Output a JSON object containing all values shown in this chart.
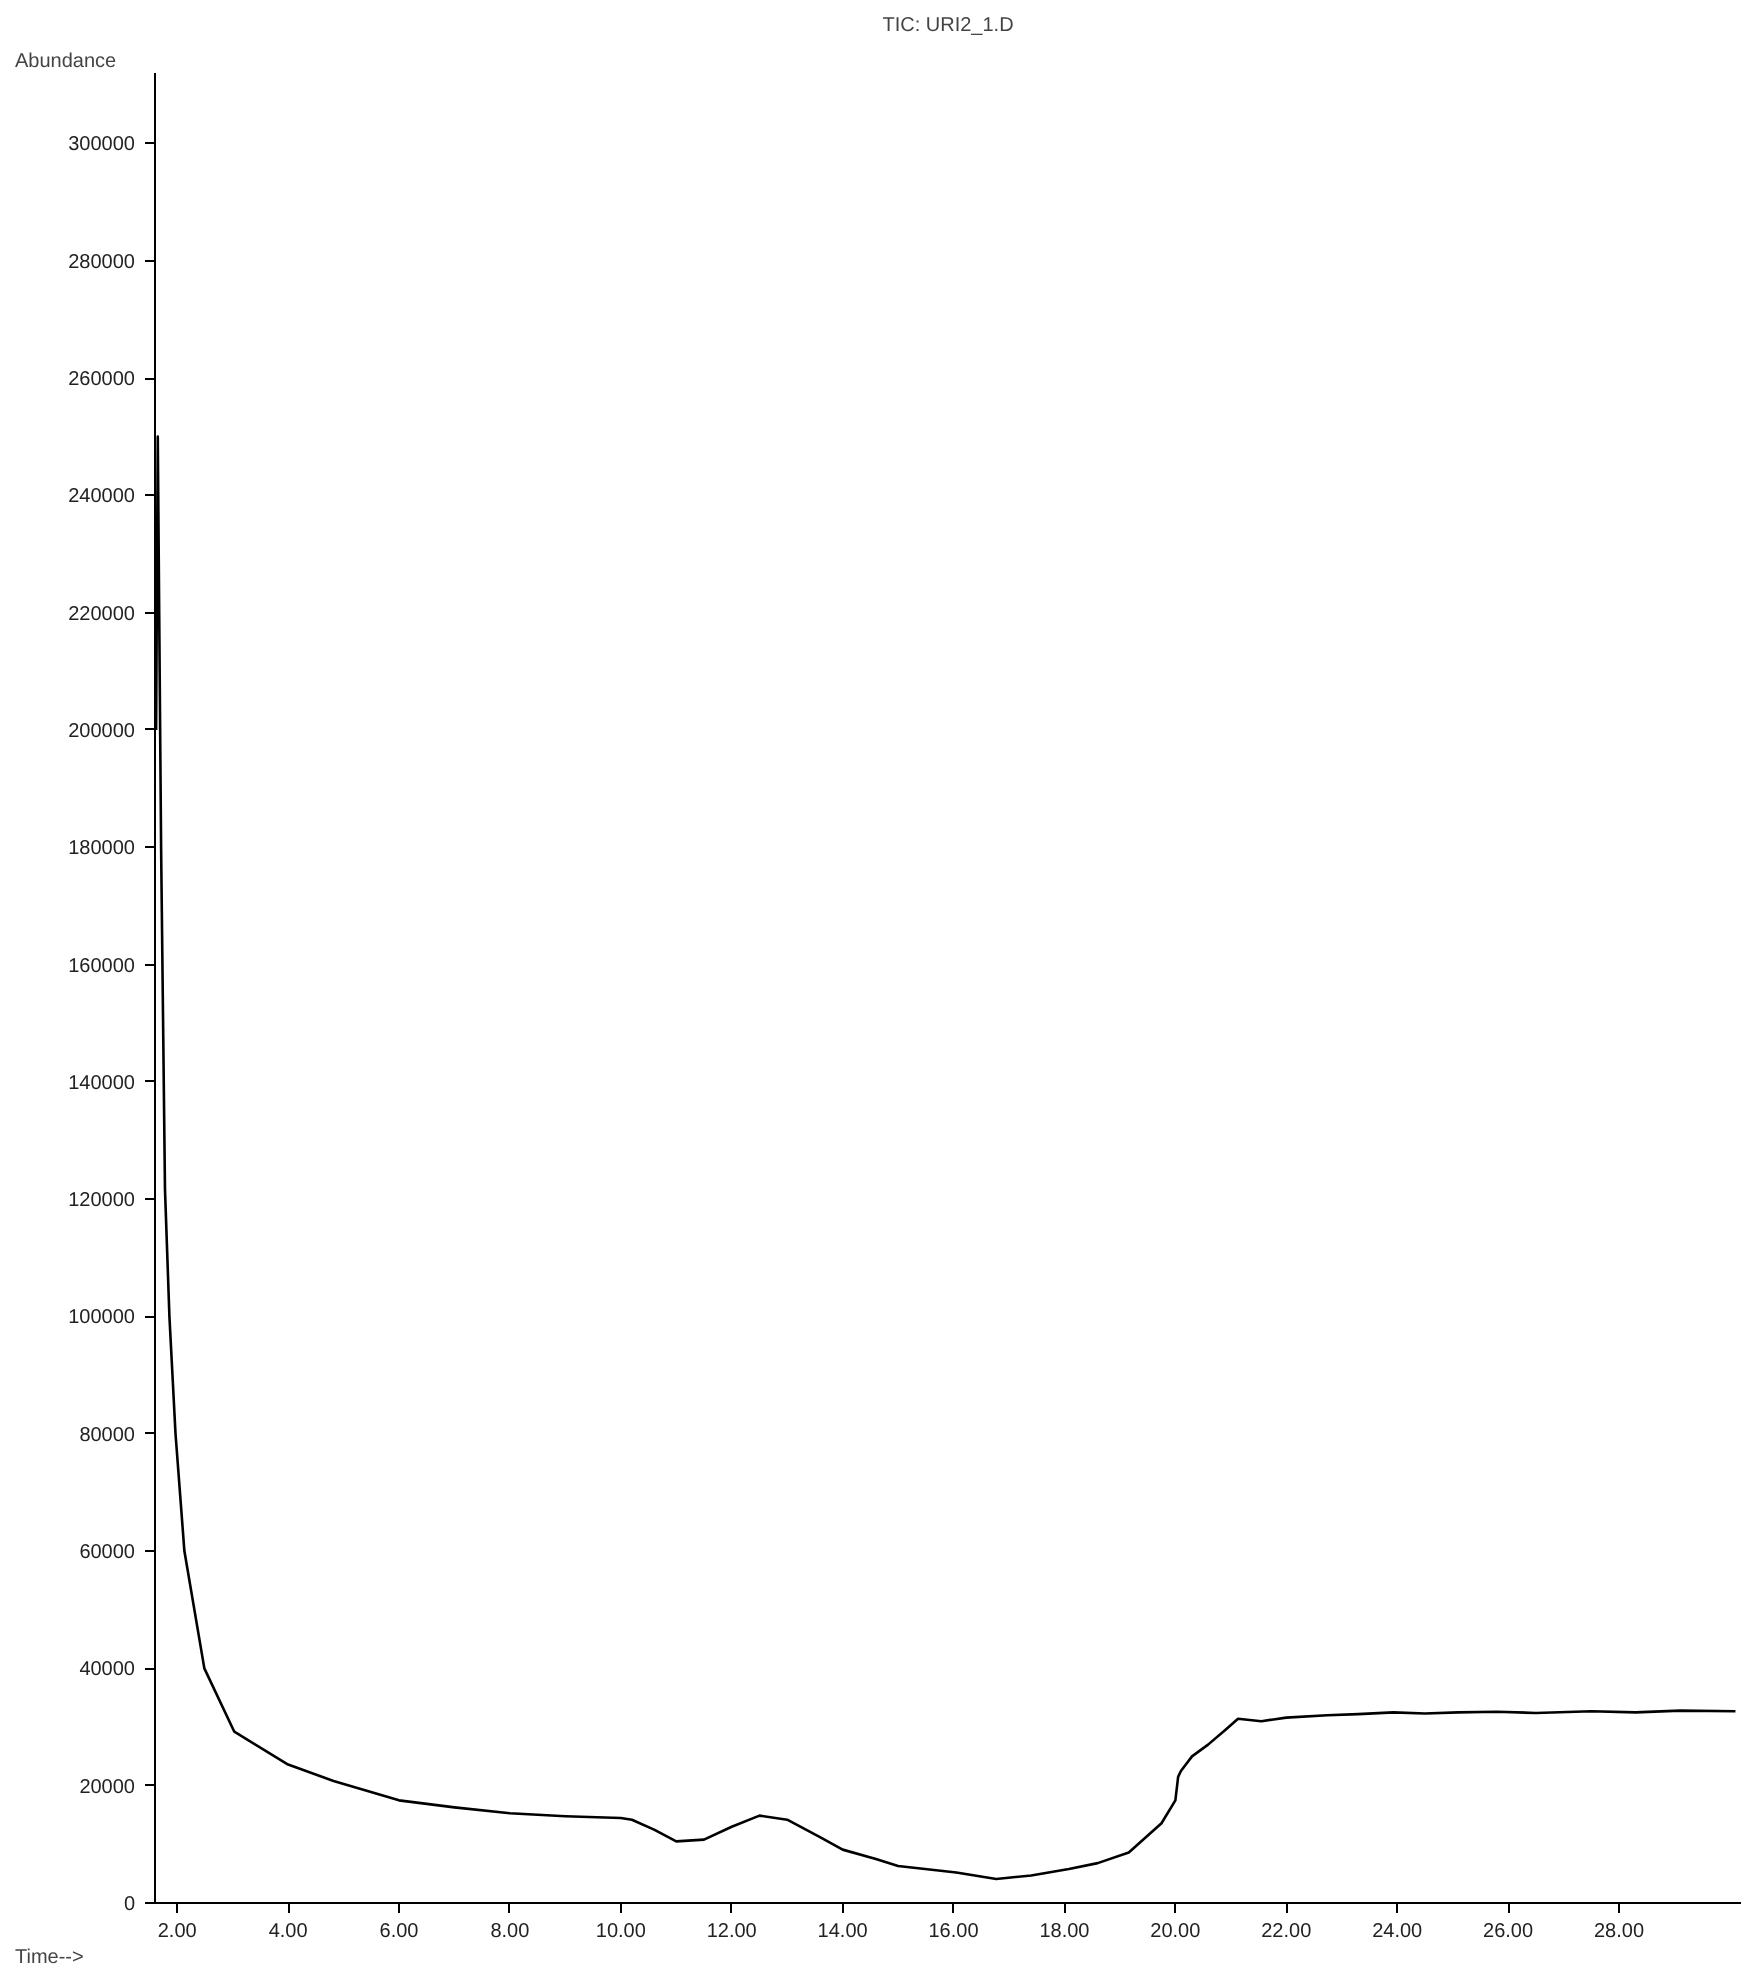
{
  "chart_data": {
    "type": "line",
    "title": "TIC: URI2_1.D",
    "xlabel": "Time-->",
    "ylabel": "Abundance",
    "xlim": [
      1.6,
      30.2
    ],
    "ylim": [
      0,
      312000
    ],
    "xticks": [
      {
        "value": 2,
        "label": "2.00"
      },
      {
        "value": 4,
        "label": "4.00"
      },
      {
        "value": 6,
        "label": "6.00"
      },
      {
        "value": 8,
        "label": "8.00"
      },
      {
        "value": 10,
        "label": "10.00"
      },
      {
        "value": 12,
        "label": "12.00"
      },
      {
        "value": 14,
        "label": "14.00"
      },
      {
        "value": 16,
        "label": "16.00"
      },
      {
        "value": 18,
        "label": "18.00"
      },
      {
        "value": 20,
        "label": "20.00"
      },
      {
        "value": 22,
        "label": "22.00"
      },
      {
        "value": 24,
        "label": "24.00"
      },
      {
        "value": 26,
        "label": "26.00"
      },
      {
        "value": 28,
        "label": "28.00"
      }
    ],
    "yticks": [
      0,
      20000,
      40000,
      60000,
      80000,
      100000,
      120000,
      140000,
      160000,
      180000,
      200000,
      220000,
      240000,
      260000,
      280000,
      300000
    ],
    "grid": false,
    "marker": "none",
    "line_style": "solid",
    "series": [
      {
        "color": "#000000",
        "x": [
          1.62,
          1.65,
          1.71,
          1.78,
          1.86,
          1.97,
          2.13,
          2.49,
          3.03,
          4.0,
          4.82,
          6.0,
          7.0,
          8.0,
          9.0,
          10.0,
          10.2,
          10.6,
          11.0,
          11.5,
          12.0,
          12.5,
          13.0,
          13.6,
          14.0,
          14.6,
          15.0,
          16.05,
          16.77,
          17.4,
          18.08,
          18.6,
          19.16,
          19.75,
          20.0,
          20.05,
          20.1,
          20.3,
          20.59,
          20.9,
          21.13,
          21.55,
          22.0,
          22.74,
          23.3,
          23.93,
          24.5,
          25.1,
          25.8,
          26.5,
          27.5,
          28.3,
          29.1,
          30.1
        ],
        "values": [
          200000,
          250000,
          180000,
          121700,
          100000,
          80000,
          60000,
          40000,
          29200,
          23600,
          20800,
          17500,
          16300,
          15300,
          14800,
          14500,
          14200,
          12500,
          10500,
          10800,
          13000,
          14900,
          14200,
          11200,
          9100,
          7500,
          6300,
          5200,
          4100,
          4700,
          5800,
          6800,
          8600,
          13600,
          17500,
          21500,
          22500,
          25000,
          27000,
          29500,
          31400,
          31000,
          31600,
          32000,
          32200,
          32500,
          32300,
          32500,
          32600,
          32400,
          32700,
          32500,
          32800,
          32700
        ]
      }
    ]
  }
}
